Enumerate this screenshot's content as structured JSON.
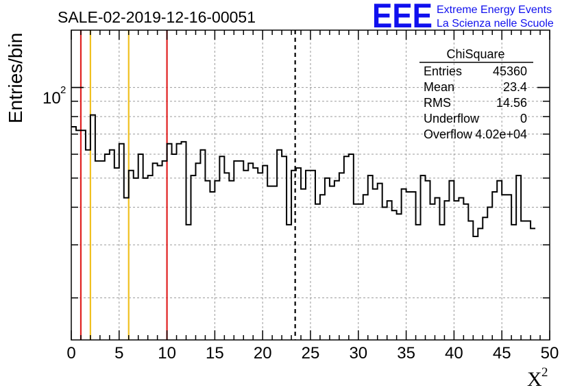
{
  "chart_data": {
    "type": "histogram",
    "title": "SALE-02-2019-12-16-00051",
    "xlabel": "X",
    "xlabel_superscript": "2",
    "ylabel": "Entries/bin",
    "xlim": [
      0,
      50
    ],
    "ylim": [
      14.5,
      155
    ],
    "yscale": "log",
    "bin_width": 0.5,
    "x_ticks": [
      0,
      5,
      10,
      15,
      20,
      25,
      30,
      35,
      40,
      45,
      50
    ],
    "x_tick_labels": [
      "0",
      "5",
      "10",
      "15",
      "20",
      "25",
      "30",
      "35",
      "40",
      "45",
      "50"
    ],
    "y_tick_label_base": "10",
    "y_tick_label_exp": "2",
    "grid": true,
    "bin_values": [
      74,
      72,
      72,
      62,
      81,
      57,
      57,
      60,
      62,
      54,
      65,
      43,
      53,
      50,
      60,
      50,
      51,
      56,
      55,
      57,
      65,
      60,
      65,
      66,
      35,
      51,
      56,
      62,
      49,
      45,
      49,
      59,
      52,
      49,
      57,
      57,
      53,
      56,
      54,
      52,
      55,
      47,
      47,
      62,
      59,
      35,
      53,
      54,
      46,
      53,
      53,
      41,
      44,
      50,
      47,
      49,
      52,
      59,
      60,
      41,
      41,
      44,
      51,
      46,
      48,
      40,
      42,
      39,
      38,
      46,
      45,
      45,
      35,
      51,
      49,
      41,
      43,
      35,
      42,
      49,
      42,
      43,
      41,
      36,
      32,
      34,
      37,
      40,
      45,
      49,
      44,
      44,
      35,
      51,
      36,
      36,
      34
    ],
    "vertical_lines": [
      {
        "x": 1,
        "color": "#e02020",
        "style": "solid"
      },
      {
        "x": 2,
        "color": "#f0c020",
        "style": "solid"
      },
      {
        "x": 6,
        "color": "#f0c020",
        "style": "solid"
      },
      {
        "x": 10,
        "color": "#e02020",
        "style": "solid"
      },
      {
        "x": 23.4,
        "color": "#000000",
        "style": "dashed"
      }
    ],
    "stats": {
      "title": "ChiSquare",
      "rows": [
        {
          "label": "Entries",
          "value": "45360"
        },
        {
          "label": "Mean",
          "value": "23.4"
        },
        {
          "label": "RMS",
          "value": "14.56"
        },
        {
          "label": "Underflow",
          "value": "0"
        },
        {
          "label": "Overflow",
          "value": "4.02e+04"
        }
      ]
    }
  },
  "logo": {
    "text": "EEE",
    "line1": "Extreme Energy Events",
    "line2": "La Scienza nelle Scuole",
    "color": "#1010ee"
  }
}
